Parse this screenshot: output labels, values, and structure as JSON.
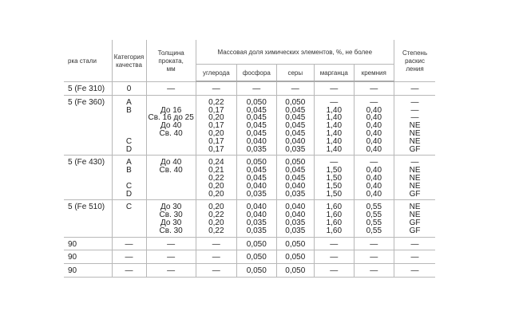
{
  "header": {
    "grade": "рка стали",
    "category": [
      "Категория",
      "качества"
    ],
    "thickness": [
      "Толщина",
      "проката,",
      "мм"
    ],
    "mass_fraction": "Массовая доля химических элементов, %, не более",
    "elements": [
      "углерода",
      "фосфора",
      "серы",
      "марганца",
      "кремния"
    ],
    "deox": [
      "Степень",
      "раскис",
      "ления"
    ]
  },
  "rows": [
    {
      "grade": "5 (Fe 310)",
      "cat": [
        "0"
      ],
      "thick": [
        "—"
      ],
      "c": [
        "—"
      ],
      "p": [
        "—"
      ],
      "s": [
        "—"
      ],
      "mn": [
        "—"
      ],
      "si": [
        "—"
      ],
      "deox": [
        "—"
      ]
    },
    {
      "grade": "5 (Fe 360)",
      "cat": [
        "A",
        "B",
        "",
        "",
        "",
        "C",
        "D"
      ],
      "thick": [
        "",
        "До 16",
        "Св. 16 до 25",
        "До 40",
        "Св. 40",
        "",
        ""
      ],
      "c": [
        "0,22",
        "0,17",
        "0,20",
        "0,17",
        "0,20",
        "0,17",
        "0,17"
      ],
      "p": [
        "0,050",
        "0,045",
        "0,045",
        "0,045",
        "0,045",
        "0,040",
        "0,035"
      ],
      "s": [
        "0,050",
        "0,045",
        "0,045",
        "0,045",
        "0,045",
        "0,040",
        "0,035"
      ],
      "mn": [
        "—",
        "1,40",
        "1,40",
        "1,40",
        "1,40",
        "1,40",
        "1,40"
      ],
      "si": [
        "—",
        "0,40",
        "0,40",
        "0,40",
        "0,40",
        "0,40",
        "0,40"
      ],
      "deox": [
        "—",
        "—",
        "—",
        "NE",
        "NE",
        "NE",
        "GF"
      ]
    },
    {
      "grade": "5 (Fe 430)",
      "cat": [
        "A",
        "B",
        "",
        "C",
        "D"
      ],
      "thick": [
        "До 40",
        "Св. 40",
        "",
        "",
        ""
      ],
      "c": [
        "0,24",
        "0,21",
        "0,22",
        "0,20",
        "0,20"
      ],
      "p": [
        "0,050",
        "0,045",
        "0,045",
        "0,040",
        "0,035"
      ],
      "s": [
        "0,050",
        "0,045",
        "0,045",
        "0,040",
        "0,035"
      ],
      "mn": [
        "—",
        "1,50",
        "1,50",
        "1,50",
        "1,50"
      ],
      "si": [
        "—",
        "0,40",
        "0,40",
        "0,40",
        "0,40"
      ],
      "deox": [
        "—",
        "NE",
        "NE",
        "NE",
        "GF"
      ]
    },
    {
      "grade": "5 (Fe 510)",
      "cat": [
        "C"
      ],
      "thick": [
        "До 30",
        "Св. 30",
        "До 30",
        "Св. 30"
      ],
      "c": [
        "0,20",
        "0,22",
        "0,20",
        "0,22"
      ],
      "p": [
        "0,040",
        "0,040",
        "0,035",
        "0,035"
      ],
      "s": [
        "0,040",
        "0,040",
        "0,035",
        "0,035"
      ],
      "mn": [
        "1,60",
        "1,60",
        "1,60",
        "1,60"
      ],
      "si": [
        "0,55",
        "0,55",
        "0,55",
        "0,55"
      ],
      "deox": [
        "NE",
        "NE",
        "GF",
        "GF"
      ]
    },
    {
      "grade": "90",
      "cat": [
        "—"
      ],
      "thick": [
        "—"
      ],
      "c": [
        "—"
      ],
      "p": [
        "0,050"
      ],
      "s": [
        "0,050"
      ],
      "mn": [
        "—"
      ],
      "si": [
        "—"
      ],
      "deox": [
        "—"
      ]
    },
    {
      "grade": "90",
      "cat": [
        "—"
      ],
      "thick": [
        "—"
      ],
      "c": [
        "—"
      ],
      "p": [
        "0,050"
      ],
      "s": [
        "0,050"
      ],
      "mn": [
        "—"
      ],
      "si": [
        "—"
      ],
      "deox": [
        "—"
      ]
    },
    {
      "grade": "90",
      "cat": [
        "—"
      ],
      "thick": [
        "—"
      ],
      "c": [
        "—"
      ],
      "p": [
        "0,050"
      ],
      "s": [
        "0,050"
      ],
      "mn": [
        "—"
      ],
      "si": [
        "—"
      ],
      "deox": [
        "—"
      ]
    }
  ]
}
